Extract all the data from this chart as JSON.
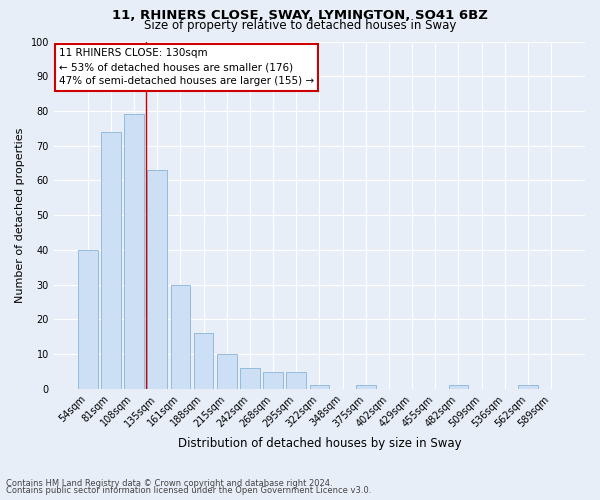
{
  "title1": "11, RHINERS CLOSE, SWAY, LYMINGTON, SO41 6BZ",
  "title2": "Size of property relative to detached houses in Sway",
  "xlabel": "Distribution of detached houses by size in Sway",
  "ylabel": "Number of detached properties",
  "footnote1": "Contains HM Land Registry data © Crown copyright and database right 2024.",
  "footnote2": "Contains public sector information licensed under the Open Government Licence v3.0.",
  "bin_labels": [
    "54sqm",
    "81sqm",
    "108sqm",
    "135sqm",
    "161sqm",
    "188sqm",
    "215sqm",
    "242sqm",
    "268sqm",
    "295sqm",
    "322sqm",
    "348sqm",
    "375sqm",
    "402sqm",
    "429sqm",
    "455sqm",
    "482sqm",
    "509sqm",
    "536sqm",
    "562sqm",
    "589sqm"
  ],
  "bar_values": [
    40,
    74,
    79,
    63,
    30,
    16,
    10,
    6,
    5,
    5,
    1,
    0,
    1,
    0,
    0,
    0,
    1,
    0,
    0,
    1,
    0
  ],
  "bar_color": "#ccdff5",
  "bar_edge_color": "#8ab4d8",
  "bg_color": "#e8eef8",
  "grid_color": "#ffffff",
  "vline_color": "#cc0000",
  "annotation_text": "11 RHINERS CLOSE: 130sqm\n← 53% of detached houses are smaller (176)\n47% of semi-detached houses are larger (155) →",
  "annotation_box_color": "#ffffff",
  "annotation_box_edge": "#cc0000",
  "ylim": [
    0,
    100
  ],
  "yticks": [
    0,
    10,
    20,
    30,
    40,
    50,
    60,
    70,
    80,
    90,
    100
  ],
  "title1_fontsize": 9.5,
  "title2_fontsize": 8.5,
  "ylabel_fontsize": 8,
  "xlabel_fontsize": 8.5,
  "tick_fontsize": 7,
  "annot_fontsize": 7.5
}
